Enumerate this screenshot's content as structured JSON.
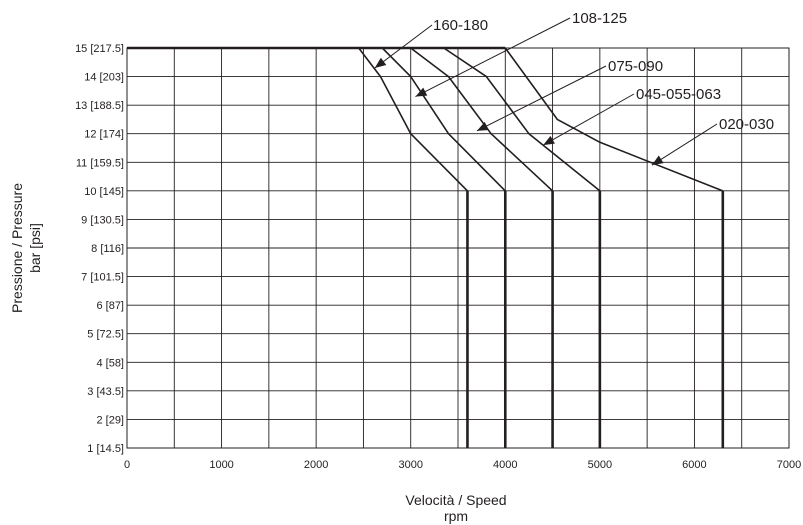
{
  "chart_data": {
    "type": "line",
    "xlabel": "Velocità / Speed",
    "xunit": "rpm",
    "ylabel_lines": [
      "Pressione / Pressure",
      "bar [psi]"
    ],
    "xlim": [
      0,
      7000
    ],
    "ylim": [
      1,
      15
    ],
    "x_ticks": [
      0,
      1000,
      2000,
      3000,
      4000,
      5000,
      6000,
      7000
    ],
    "x_tick_labels": [
      "0",
      "1000",
      "2000",
      "3000",
      "4000",
      "5000",
      "6000",
      "7000"
    ],
    "y_ticks": [
      1,
      2,
      3,
      4,
      5,
      6,
      7,
      8,
      9,
      10,
      11,
      12,
      13,
      14,
      15
    ],
    "y_tick_labels": [
      "1 [14.5]",
      "2 [29]",
      "3 [43.5]",
      "4 [58]",
      "5 [72.5]",
      "6 [87]",
      "7 [101.5]",
      "8 [116]",
      "9 [130.5]",
      "10 [145]",
      "11 [159.5]",
      "12 [174]",
      "13 [188.5]",
      "14 [203]",
      "15 [217.5]"
    ],
    "grid": true,
    "grid_x_step": 500,
    "top_line": {
      "x": [
        0,
        4000
      ],
      "y": [
        15,
        15
      ]
    },
    "series": [
      {
        "name": "160-180",
        "x": [
          2450,
          2680,
          3000,
          3600,
          3600
        ],
        "y": [
          15,
          14,
          12,
          10,
          1
        ],
        "label_arrow_to": [
          2620,
          14.3
        ]
      },
      {
        "name": "108-125",
        "x": [
          2700,
          3000,
          3400,
          4000,
          4000
        ],
        "y": [
          15,
          14,
          12,
          10,
          1
        ],
        "label_arrow_to": [
          3050,
          13.3
        ]
      },
      {
        "name": "075-090",
        "x": [
          3000,
          3400,
          3850,
          4500,
          4500
        ],
        "y": [
          15,
          14,
          12,
          10,
          1
        ],
        "label_arrow_to": [
          3700,
          12.1
        ]
      },
      {
        "name": "045-055-063",
        "x": [
          3350,
          3800,
          4250,
          5000,
          5000
        ],
        "y": [
          15,
          14,
          12,
          10,
          1
        ],
        "label_arrow_to": [
          4400,
          11.6
        ]
      },
      {
        "name": "020-030",
        "x": [
          4000,
          4550,
          5000,
          6300,
          6300
        ],
        "y": [
          15,
          12.5,
          11.7,
          10,
          1
        ],
        "label_arrow_to": [
          5550,
          10.9
        ]
      }
    ]
  }
}
